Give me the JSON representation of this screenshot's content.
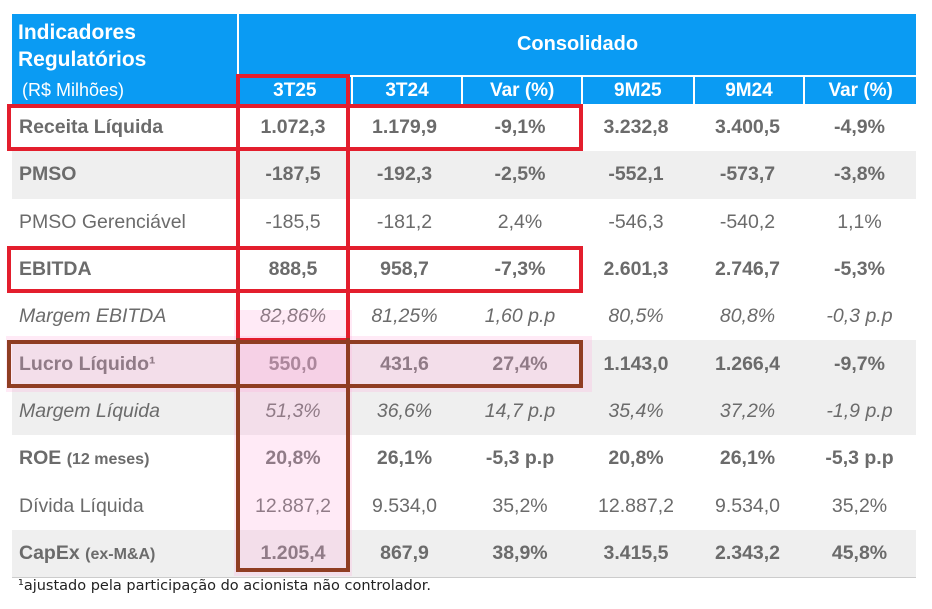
{
  "header": {
    "title_line1": "Indicadores",
    "title_line2": "Regulatórios",
    "unit": "(R$ Milhões)",
    "group": "Consolidado",
    "columns": [
      "3T25",
      "3T24",
      "Var (%)",
      "9M25",
      "9M24",
      "Var (%)"
    ]
  },
  "rows": [
    {
      "label": "Receita Líquida",
      "values": [
        "1.072,3",
        "1.179,9",
        "-9,1%",
        "3.232,8",
        "3.400,5",
        "-4,9%"
      ]
    },
    {
      "label": "PMSO",
      "values": [
        "-187,5",
        "-192,3",
        "-2,5%",
        "-552,1",
        "-573,7",
        "-3,8%"
      ]
    },
    {
      "label": "PMSO Gerenciável",
      "values": [
        "-185,5",
        "-181,2",
        "2,4%",
        "-546,3",
        "-540,2",
        "1,1%"
      ]
    },
    {
      "label": "EBITDA",
      "values": [
        "888,5",
        "958,7",
        "-7,3%",
        "2.601,3",
        "2.746,7",
        "-5,3%"
      ]
    },
    {
      "label": "Margem EBITDA",
      "values": [
        "82,86%",
        "81,25%",
        "1,60 p.p",
        "80,5%",
        "80,8%",
        "-0,3 p.p"
      ]
    },
    {
      "label": "Lucro Líquido¹",
      "values": [
        "550,0",
        "431,6",
        "27,4%",
        "1.143,0",
        "1.266,4",
        "-9,7%"
      ]
    },
    {
      "label": "Margem Líquida",
      "values": [
        "51,3%",
        "36,6%",
        "14,7 p.p",
        "35,4%",
        "37,2%",
        "-1,9 p.p"
      ]
    },
    {
      "label": "ROE",
      "label_suffix": "(12 meses)",
      "values": [
        "20,8%",
        "26,1%",
        "-5,3 p.p",
        "20,8%",
        "26,1%",
        "-5,3 p.p"
      ]
    },
    {
      "label": "Dívida Líquida",
      "values": [
        "12.887,2",
        "9.534,0",
        "35,2%",
        "12.887,2",
        "9.534,0",
        "35,2%"
      ]
    },
    {
      "label": "CapEx",
      "label_suffix": "(ex-M&A)",
      "values": [
        "1.205,4",
        "867,9",
        "38,9%",
        "3.415,5",
        "2.343,2",
        "45,8%"
      ]
    }
  ],
  "footnote": "¹ajustado pela participação do acionista não controlador.",
  "colors": {
    "header": "#0a9bf3",
    "highlight_red": "#e31e2d",
    "highlight_brown": "#8f3d22"
  }
}
